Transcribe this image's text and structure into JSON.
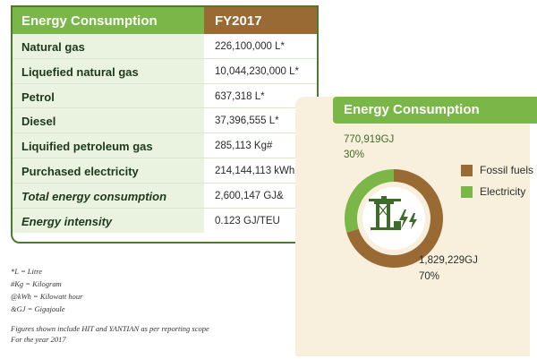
{
  "table": {
    "header_label": "Energy Consumption",
    "header_value": "FY2017",
    "rows": [
      {
        "label": "Natural gas",
        "value": "226,100,000 L*"
      },
      {
        "label": "Liquefied natural gas",
        "value": "10,044,230,000 L*"
      },
      {
        "label": "Petrol",
        "value": "637,318 L*"
      },
      {
        "label": "Diesel",
        "value": "37,396,555 L*"
      },
      {
        "label": "Liquified petroleum gas",
        "value": "285,113 Kg#"
      },
      {
        "label": "Purchased electricity",
        "value": "214,144,113 kWh@"
      },
      {
        "label": "Total energy consumption",
        "value": "2,600,147 GJ&"
      },
      {
        "label": "Energy intensity",
        "value": "0.123 GJ/TEU"
      }
    ]
  },
  "footnotes": [
    "*L = Litre",
    "#Kg = Kilogram",
    "@kWh = Kilowatt hour",
    "&GJ = Gigajoule"
  ],
  "scope_note": [
    "Figures shown include HIT and YANTIAN as per reporting scope",
    "For the year 2017"
  ],
  "colors": {
    "green": "#7ab648",
    "brown": "#9a6a34"
  },
  "icon": "port-crane-icon",
  "chart_data": {
    "type": "pie",
    "title": "Energy Consumption",
    "slices": [
      {
        "name": "Fossil fuels",
        "value": 1829229,
        "value_label": "1,829,229GJ",
        "percent_label": "70%",
        "color": "#9a6a34"
      },
      {
        "name": "Electricity",
        "value": 770919,
        "value_label": "770,919GJ",
        "percent_label": "30%",
        "color": "#7ab648"
      }
    ],
    "legend_placement": "right"
  }
}
